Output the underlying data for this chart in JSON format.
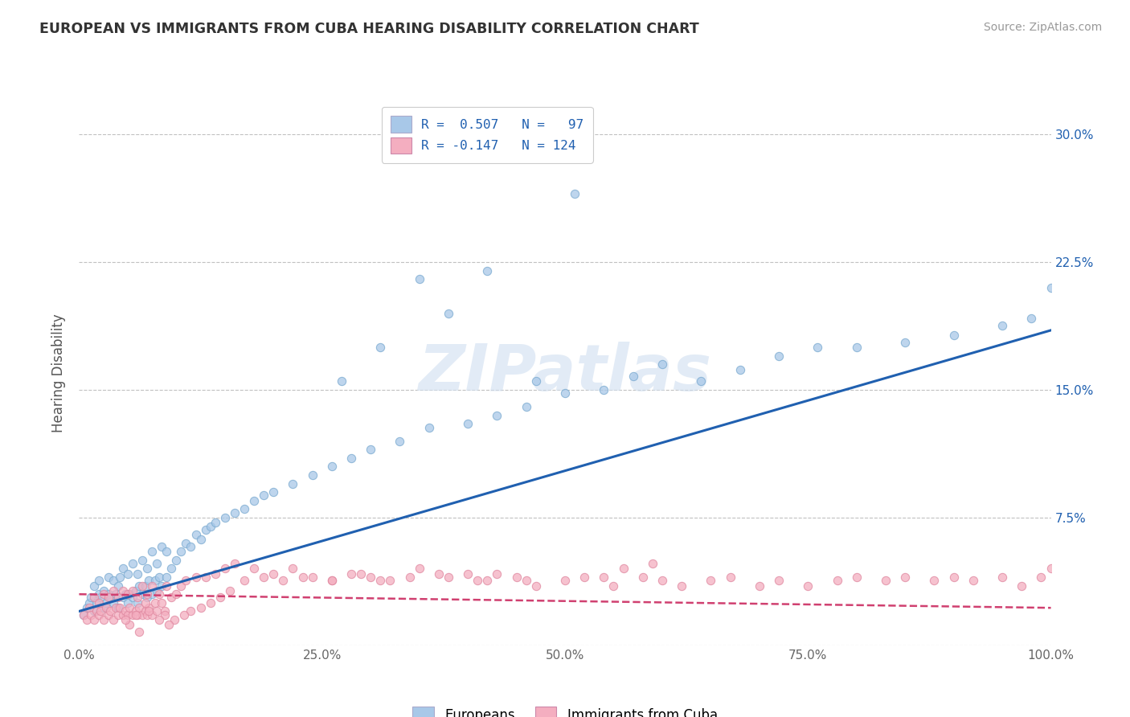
{
  "title": "EUROPEAN VS IMMIGRANTS FROM CUBA HEARING DISABILITY CORRELATION CHART",
  "source": "Source: ZipAtlas.com",
  "ylabel": "Hearing Disability",
  "watermark": "ZIPatlas",
  "blue_R": 0.507,
  "blue_N": 97,
  "pink_R": -0.147,
  "pink_N": 124,
  "blue_color": "#a8c8e8",
  "pink_color": "#f4aec0",
  "blue_edge_color": "#7aaad0",
  "pink_edge_color": "#e088a0",
  "blue_line_color": "#2060b0",
  "pink_line_color": "#d04070",
  "background_color": "#ffffff",
  "grid_color": "#bbbbbb",
  "xlim": [
    0.0,
    1.0
  ],
  "ylim": [
    0.0,
    0.32
  ],
  "xticks": [
    0.0,
    0.25,
    0.5,
    0.75,
    1.0
  ],
  "xtick_labels": [
    "0.0%",
    "25.0%",
    "50.0%",
    "75.0%",
    "100.0%"
  ],
  "yticks": [
    0.0,
    0.075,
    0.15,
    0.225,
    0.3
  ],
  "ytick_labels_left": [
    "",
    "",
    "",
    "",
    ""
  ],
  "ytick_labels_right": [
    "",
    "7.5%",
    "15.0%",
    "22.5%",
    "30.0%"
  ],
  "blue_scatter_x": [
    0.005,
    0.008,
    0.01,
    0.012,
    0.015,
    0.015,
    0.018,
    0.02,
    0.02,
    0.022,
    0.025,
    0.025,
    0.028,
    0.03,
    0.03,
    0.032,
    0.035,
    0.035,
    0.038,
    0.04,
    0.04,
    0.042,
    0.045,
    0.045,
    0.048,
    0.05,
    0.05,
    0.052,
    0.055,
    0.055,
    0.058,
    0.06,
    0.06,
    0.062,
    0.065,
    0.065,
    0.068,
    0.07,
    0.07,
    0.072,
    0.075,
    0.075,
    0.078,
    0.08,
    0.08,
    0.082,
    0.085,
    0.085,
    0.09,
    0.09,
    0.095,
    0.1,
    0.105,
    0.11,
    0.115,
    0.12,
    0.125,
    0.13,
    0.135,
    0.14,
    0.15,
    0.16,
    0.17,
    0.18,
    0.19,
    0.2,
    0.22,
    0.24,
    0.26,
    0.28,
    0.3,
    0.33,
    0.36,
    0.4,
    0.43,
    0.46,
    0.5,
    0.54,
    0.57,
    0.6,
    0.64,
    0.68,
    0.72,
    0.76,
    0.8,
    0.85,
    0.9,
    0.95,
    0.98,
    1.0,
    0.47,
    0.51,
    0.42,
    0.38,
    0.35,
    0.31,
    0.27
  ],
  "blue_scatter_y": [
    0.018,
    0.022,
    0.025,
    0.028,
    0.02,
    0.035,
    0.025,
    0.03,
    0.038,
    0.028,
    0.022,
    0.032,
    0.025,
    0.03,
    0.04,
    0.028,
    0.025,
    0.038,
    0.03,
    0.022,
    0.035,
    0.04,
    0.028,
    0.045,
    0.03,
    0.025,
    0.042,
    0.03,
    0.028,
    0.048,
    0.032,
    0.025,
    0.042,
    0.035,
    0.03,
    0.05,
    0.035,
    0.028,
    0.045,
    0.038,
    0.03,
    0.055,
    0.038,
    0.032,
    0.048,
    0.04,
    0.035,
    0.058,
    0.04,
    0.055,
    0.045,
    0.05,
    0.055,
    0.06,
    0.058,
    0.065,
    0.062,
    0.068,
    0.07,
    0.072,
    0.075,
    0.078,
    0.08,
    0.085,
    0.088,
    0.09,
    0.095,
    0.1,
    0.105,
    0.11,
    0.115,
    0.12,
    0.128,
    0.13,
    0.135,
    0.14,
    0.148,
    0.15,
    0.158,
    0.165,
    0.155,
    0.162,
    0.17,
    0.175,
    0.175,
    0.178,
    0.182,
    0.188,
    0.192,
    0.21,
    0.155,
    0.265,
    0.22,
    0.195,
    0.215,
    0.175,
    0.155
  ],
  "pink_scatter_x": [
    0.005,
    0.008,
    0.01,
    0.012,
    0.015,
    0.015,
    0.018,
    0.02,
    0.02,
    0.022,
    0.025,
    0.025,
    0.028,
    0.03,
    0.03,
    0.032,
    0.035,
    0.035,
    0.038,
    0.04,
    0.04,
    0.042,
    0.045,
    0.045,
    0.048,
    0.05,
    0.05,
    0.052,
    0.055,
    0.055,
    0.058,
    0.06,
    0.06,
    0.062,
    0.065,
    0.065,
    0.068,
    0.07,
    0.07,
    0.072,
    0.075,
    0.075,
    0.078,
    0.08,
    0.082,
    0.085,
    0.088,
    0.09,
    0.095,
    0.1,
    0.105,
    0.11,
    0.12,
    0.13,
    0.14,
    0.15,
    0.16,
    0.18,
    0.2,
    0.22,
    0.24,
    0.26,
    0.28,
    0.3,
    0.32,
    0.35,
    0.38,
    0.4,
    0.42,
    0.45,
    0.47,
    0.5,
    0.52,
    0.55,
    0.58,
    0.6,
    0.62,
    0.65,
    0.67,
    0.7,
    0.72,
    0.75,
    0.78,
    0.8,
    0.83,
    0.85,
    0.88,
    0.9,
    0.92,
    0.95,
    0.97,
    0.99,
    1.0,
    0.46,
    0.54,
    0.56,
    0.59,
    0.43,
    0.41,
    0.37,
    0.34,
    0.31,
    0.29,
    0.26,
    0.23,
    0.21,
    0.19,
    0.17,
    0.155,
    0.145,
    0.135,
    0.125,
    0.115,
    0.108,
    0.098,
    0.092,
    0.088,
    0.082,
    0.072,
    0.068,
    0.062,
    0.058,
    0.052,
    0.048
  ],
  "pink_scatter_y": [
    0.018,
    0.015,
    0.022,
    0.018,
    0.015,
    0.028,
    0.02,
    0.018,
    0.025,
    0.02,
    0.015,
    0.03,
    0.022,
    0.018,
    0.028,
    0.02,
    0.015,
    0.032,
    0.022,
    0.018,
    0.028,
    0.022,
    0.018,
    0.032,
    0.02,
    0.018,
    0.03,
    0.022,
    0.018,
    0.032,
    0.02,
    0.018,
    0.028,
    0.022,
    0.018,
    0.035,
    0.02,
    0.018,
    0.03,
    0.022,
    0.018,
    0.035,
    0.025,
    0.02,
    0.03,
    0.025,
    0.02,
    0.035,
    0.028,
    0.03,
    0.035,
    0.038,
    0.04,
    0.04,
    0.042,
    0.045,
    0.048,
    0.045,
    0.042,
    0.045,
    0.04,
    0.038,
    0.042,
    0.04,
    0.038,
    0.045,
    0.04,
    0.042,
    0.038,
    0.04,
    0.035,
    0.038,
    0.04,
    0.035,
    0.04,
    0.038,
    0.035,
    0.038,
    0.04,
    0.035,
    0.038,
    0.035,
    0.038,
    0.04,
    0.038,
    0.04,
    0.038,
    0.04,
    0.038,
    0.04,
    0.035,
    0.04,
    0.045,
    0.038,
    0.04,
    0.045,
    0.048,
    0.042,
    0.038,
    0.042,
    0.04,
    0.038,
    0.042,
    0.038,
    0.04,
    0.038,
    0.04,
    0.038,
    0.032,
    0.028,
    0.025,
    0.022,
    0.02,
    0.018,
    0.015,
    0.012,
    0.018,
    0.015,
    0.02,
    0.025,
    0.008,
    0.018,
    0.012,
    0.015
  ],
  "blue_line_x": [
    0.0,
    1.0
  ],
  "blue_line_y": [
    0.02,
    0.185
  ],
  "pink_line_x": [
    0.0,
    1.0
  ],
  "pink_line_y": [
    0.03,
    0.022
  ],
  "legend_blue_label": "R =  0.507   N =   97",
  "legend_pink_label": "R = -0.147   N = 124",
  "legend_bottom_blue": "Europeans",
  "legend_bottom_pink": "Immigrants from Cuba"
}
